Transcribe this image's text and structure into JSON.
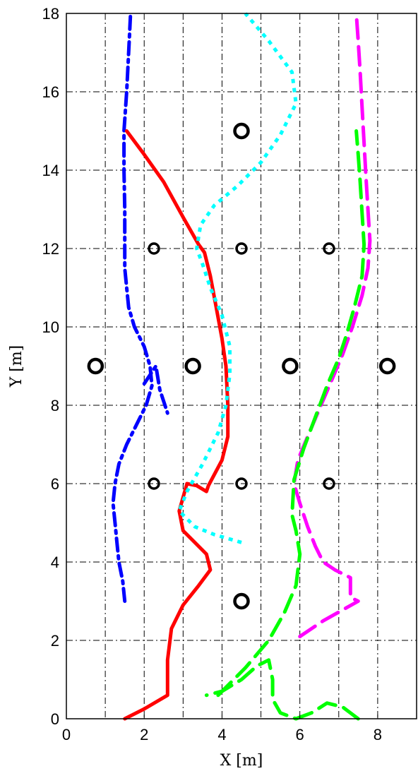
{
  "chart_data": {
    "type": "line",
    "title": "",
    "xlabel": "X [m]",
    "ylabel": "Y [m]",
    "xlim": [
      0,
      9
    ],
    "ylim": [
      0,
      18
    ],
    "xticks": [
      0,
      2,
      4,
      6,
      8
    ],
    "yticks": [
      0,
      2,
      4,
      6,
      8,
      10,
      12,
      14,
      16,
      18
    ],
    "grid": true,
    "legend": "none",
    "series": [
      {
        "color": "#0000ff",
        "style": "dashdot",
        "points": [
          [
            1.5,
            3.0
          ],
          [
            1.45,
            3.5
          ],
          [
            1.35,
            4.0
          ],
          [
            1.3,
            4.5
          ],
          [
            1.25,
            5.0
          ],
          [
            1.2,
            5.5
          ],
          [
            1.25,
            6.0
          ],
          [
            1.35,
            6.5
          ],
          [
            1.55,
            7.0
          ],
          [
            1.8,
            7.5
          ],
          [
            2.05,
            8.0
          ],
          [
            2.2,
            8.5
          ],
          [
            2.15,
            9.0
          ],
          [
            2.0,
            9.5
          ],
          [
            1.75,
            10.0
          ],
          [
            1.6,
            10.5
          ],
          [
            1.55,
            11.0
          ],
          [
            1.5,
            11.5
          ],
          [
            1.5,
            12.0
          ],
          [
            1.5,
            13.0
          ],
          [
            1.48,
            14.0
          ],
          [
            1.48,
            15.0
          ],
          [
            1.55,
            16.0
          ],
          [
            1.6,
            17.0
          ],
          [
            1.65,
            18.0
          ]
        ]
      },
      {
        "color": "#0000ff",
        "style": "dashdot",
        "points": [
          [
            2.0,
            8.55
          ],
          [
            2.3,
            9.0
          ],
          [
            2.4,
            8.4
          ],
          [
            2.6,
            7.8
          ]
        ]
      },
      {
        "color": "#ff0000",
        "style": "solid",
        "points": [
          [
            1.5,
            0.0
          ],
          [
            2.0,
            0.25
          ],
          [
            2.6,
            0.6
          ],
          [
            2.6,
            1.5
          ],
          [
            2.7,
            2.3
          ],
          [
            3.0,
            2.9
          ],
          [
            3.4,
            3.4
          ],
          [
            3.7,
            3.8
          ],
          [
            3.6,
            4.2
          ],
          [
            3.0,
            4.8
          ],
          [
            2.9,
            5.3
          ],
          [
            3.1,
            6.0
          ],
          [
            3.35,
            5.95
          ],
          [
            3.6,
            5.8
          ],
          [
            3.65,
            5.95
          ],
          [
            4.0,
            6.6
          ],
          [
            4.15,
            7.2
          ],
          [
            4.15,
            8.0
          ],
          [
            4.1,
            9.0
          ],
          [
            4.0,
            9.7
          ],
          [
            3.85,
            10.5
          ],
          [
            3.7,
            11.3
          ],
          [
            3.55,
            11.9
          ],
          [
            3.4,
            12.1
          ],
          [
            3.0,
            12.8
          ],
          [
            2.5,
            13.7
          ],
          [
            2.0,
            14.4
          ],
          [
            1.55,
            15.0
          ]
        ]
      },
      {
        "color": "#00ffff",
        "style": "dotted",
        "points": [
          [
            4.5,
            4.5
          ],
          [
            3.8,
            4.7
          ],
          [
            3.3,
            4.9
          ],
          [
            2.9,
            5.3
          ],
          [
            3.1,
            5.8
          ],
          [
            3.5,
            6.5
          ],
          [
            3.9,
            7.3
          ],
          [
            4.1,
            8.0
          ],
          [
            4.2,
            8.8
          ],
          [
            4.2,
            9.5
          ],
          [
            4.0,
            10.3
          ],
          [
            3.7,
            11.0
          ],
          [
            3.5,
            11.6
          ],
          [
            3.35,
            12.0
          ],
          [
            3.45,
            12.6
          ],
          [
            3.8,
            13.1
          ],
          [
            4.4,
            13.6
          ],
          [
            5.0,
            14.2
          ],
          [
            5.5,
            14.9
          ],
          [
            5.9,
            15.7
          ],
          [
            5.8,
            16.5
          ],
          [
            5.2,
            17.3
          ],
          [
            4.6,
            18.0
          ]
        ]
      },
      {
        "color": "#ff00ff",
        "style": "dashed",
        "points": [
          [
            6.0,
            2.1
          ],
          [
            6.6,
            2.5
          ],
          [
            7.5,
            3.0
          ],
          [
            7.3,
            3.1
          ],
          [
            7.3,
            3.6
          ],
          [
            6.9,
            3.8
          ],
          [
            6.6,
            4.0
          ],
          [
            6.4,
            4.4
          ],
          [
            6.2,
            4.9
          ],
          [
            6.0,
            5.5
          ],
          [
            5.85,
            6.0
          ],
          [
            5.95,
            6.6
          ],
          [
            6.2,
            7.2
          ],
          [
            6.5,
            7.9
          ],
          [
            6.8,
            8.6
          ],
          [
            7.1,
            9.3
          ],
          [
            7.35,
            10.0
          ],
          [
            7.6,
            10.8
          ],
          [
            7.75,
            11.5
          ],
          [
            7.8,
            12.2
          ],
          [
            7.75,
            13.0
          ],
          [
            7.7,
            13.8
          ],
          [
            7.65,
            14.7
          ],
          [
            7.6,
            15.6
          ],
          [
            7.55,
            16.5
          ],
          [
            7.5,
            17.3
          ],
          [
            7.45,
            18.0
          ]
        ]
      },
      {
        "color": "#00ff00",
        "style": "dashed",
        "points": [
          [
            7.5,
            0.0
          ],
          [
            7.1,
            0.3
          ],
          [
            6.7,
            0.4
          ],
          [
            6.3,
            0.15
          ],
          [
            5.9,
            0.0
          ],
          [
            5.5,
            0.15
          ],
          [
            5.3,
            0.5
          ],
          [
            5.3,
            1.0
          ],
          [
            5.2,
            1.5
          ],
          [
            4.9,
            1.35
          ],
          [
            4.5,
            1.0
          ],
          [
            4.0,
            0.7
          ],
          [
            3.6,
            0.6
          ]
        ]
      },
      {
        "color": "#00ff00",
        "style": "dashed",
        "points": [
          [
            3.9,
            0.6
          ],
          [
            4.6,
            1.3
          ],
          [
            5.2,
            2.0
          ],
          [
            5.6,
            2.7
          ],
          [
            5.9,
            3.4
          ],
          [
            6.0,
            4.2
          ],
          [
            5.9,
            4.8
          ],
          [
            5.8,
            5.2
          ],
          [
            5.85,
            6.1
          ],
          [
            6.1,
            6.9
          ],
          [
            6.4,
            7.7
          ],
          [
            6.7,
            8.5
          ],
          [
            7.0,
            9.2
          ],
          [
            7.2,
            9.8
          ],
          [
            7.4,
            10.5
          ],
          [
            7.6,
            11.3
          ],
          [
            7.65,
            12.1
          ],
          [
            7.6,
            12.9
          ],
          [
            7.55,
            13.7
          ],
          [
            7.5,
            14.4
          ],
          [
            7.45,
            15.0
          ]
        ]
      }
    ],
    "markers": [
      {
        "x": 4.5,
        "y": 15,
        "size": "large"
      },
      {
        "x": 2.25,
        "y": 12,
        "size": "small"
      },
      {
        "x": 4.5,
        "y": 12,
        "size": "small"
      },
      {
        "x": 6.75,
        "y": 12,
        "size": "small"
      },
      {
        "x": 0.75,
        "y": 9,
        "size": "large"
      },
      {
        "x": 3.25,
        "y": 9,
        "size": "large"
      },
      {
        "x": 5.75,
        "y": 9,
        "size": "large"
      },
      {
        "x": 8.25,
        "y": 9,
        "size": "large"
      },
      {
        "x": 2.25,
        "y": 6,
        "size": "small"
      },
      {
        "x": 4.5,
        "y": 6,
        "size": "small"
      },
      {
        "x": 6.75,
        "y": 6,
        "size": "small"
      },
      {
        "x": 4.5,
        "y": 3,
        "size": "large"
      }
    ]
  }
}
